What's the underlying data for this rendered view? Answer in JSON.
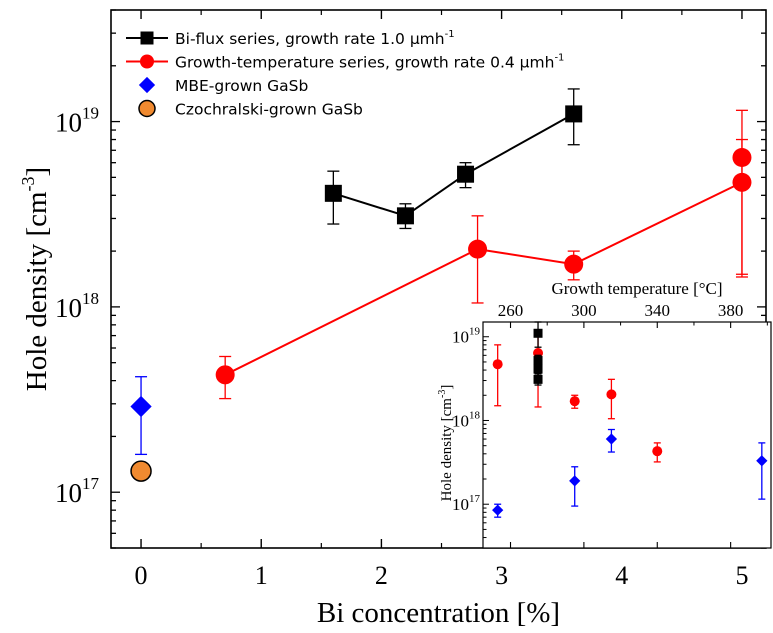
{
  "chart_data": [
    {
      "id": "main",
      "type": "scatter",
      "xlabel": "Bi concentration [%]",
      "ylabel_base": "Hole density [cm",
      "ylabel_exp": "-3",
      "ylabel_close": "]",
      "xlim": [
        -0.25,
        5.2
      ],
      "ylim": [
        5e+16,
        4e+19
      ],
      "yscale": "log",
      "xticks": [
        0,
        1,
        2,
        3,
        4,
        5
      ],
      "yticks": [
        {
          "value": 1e+17,
          "base": "10",
          "exp": "17"
        },
        {
          "value": 1e+18,
          "base": "10",
          "exp": "18"
        },
        {
          "value": 1e+19,
          "base": "10",
          "exp": "19"
        }
      ],
      "legend": {
        "placement": "top-left",
        "entries": [
          {
            "series": "bi",
            "label": "Bi-flux series, growth rate 1.0 μmh",
            "sup": "-1"
          },
          {
            "series": "gt",
            "label": "Growth-temperature series, growth rate 0.4 μmh",
            "sup": "-1"
          },
          {
            "series": "mbe",
            "label": "MBE-grown GaSb",
            "sup": ""
          },
          {
            "series": "cz",
            "label": "Czochralski-grown GaSb",
            "sup": ""
          }
        ]
      },
      "series": [
        {
          "key": "bi",
          "marker": "square",
          "color": "#000000",
          "line": true,
          "points": [
            {
              "x": 1.6,
              "y": 4.1e+18,
              "lo": 2.8e+18,
              "hi": 5.4e+18
            },
            {
              "x": 2.2,
              "y": 3.1e+18,
              "lo": 2.65e+18,
              "hi": 3.6e+18
            },
            {
              "x": 2.7,
              "y": 5.2e+18,
              "lo": 4.4e+18,
              "hi": 6e+18
            },
            {
              "x": 3.6,
              "y": 1.1e+19,
              "lo": 7.5e+18,
              "hi": 1.5e+19
            }
          ]
        },
        {
          "key": "gt",
          "marker": "circle",
          "color": "#ff0000",
          "line": true,
          "points": [
            {
              "x": 0.7,
              "y": 4.3e+17,
              "lo": 3.2e+17,
              "hi": 5.4e+17
            },
            {
              "x": 2.8,
              "y": 2.05e+18,
              "lo": 1.05e+18,
              "hi": 3.1e+18
            },
            {
              "x": 3.6,
              "y": 1.7e+18,
              "lo": 1.4e+18,
              "hi": 2e+18
            },
            {
              "x": 5.0,
              "y": 4.7e+18,
              "lo": 1.5e+18,
              "hi": 8e+18
            },
            {
              "x": 5.0,
              "y": 6.4e+18,
              "lo": 1.45e+18,
              "hi": 1.15e+19,
              "noline": true
            }
          ]
        },
        {
          "key": "mbe",
          "marker": "diamond",
          "color": "#0000ff",
          "line": false,
          "points": [
            {
              "x": 0.0,
              "y": 2.9e+17,
              "lo": 1.6e+17,
              "hi": 4.2e+17
            }
          ]
        },
        {
          "key": "cz",
          "marker": "circle",
          "color": "#f08a30",
          "stroke": "#000000",
          "line": false,
          "points": [
            {
              "x": 0.0,
              "y": 1.3e+17
            }
          ]
        }
      ]
    },
    {
      "id": "inset",
      "type": "scatter",
      "xlabel": "Growth temperature [°C]",
      "xlabel_position": "top",
      "ylabel_base": "Hole density [cm",
      "ylabel_exp": "-3",
      "ylabel_close": "]",
      "xlim": [
        245,
        402
      ],
      "ylim": [
        3e+16,
        1.5e+19
      ],
      "yscale": "log",
      "xticks": [
        260,
        300,
        340,
        380
      ],
      "yticks": [
        {
          "value": 1e+17,
          "base": "10",
          "exp": "17"
        },
        {
          "value": 1e+18,
          "base": "10",
          "exp": "18"
        },
        {
          "value": 1e+19,
          "base": "10",
          "exp": "19"
        }
      ],
      "series": [
        {
          "key": "gt",
          "marker": "circle",
          "color": "#ff0000",
          "points": [
            {
              "x": 253,
              "y": 4.7e+18,
              "lo": 1.5e+18,
              "hi": 8e+18
            },
            {
              "x": 275,
              "y": 6.4e+18,
              "lo": 1.45e+18,
              "hi": 1.15e+19
            },
            {
              "x": 295,
              "y": 1.7e+18,
              "lo": 1.4e+18,
              "hi": 2e+18
            },
            {
              "x": 315,
              "y": 2.05e+18,
              "lo": 1.05e+18,
              "hi": 3.1e+18
            },
            {
              "x": 340,
              "y": 4.3e+17,
              "lo": 3.2e+17,
              "hi": 5.4e+17
            }
          ]
        },
        {
          "key": "bi",
          "marker": "square",
          "color": "#000000",
          "points": [
            {
              "x": 275,
              "y": 1.1e+19,
              "lo": 7.5e+18,
              "hi": 1.5e+19
            },
            {
              "x": 275,
              "y": 5.2e+18,
              "lo": 4.4e+18,
              "hi": 6e+18
            },
            {
              "x": 275,
              "y": 4.1e+18,
              "lo": 2.8e+18,
              "hi": 5.4e+18
            },
            {
              "x": 275,
              "y": 3.1e+18,
              "lo": 2.65e+18,
              "hi": 3.6e+18
            }
          ]
        },
        {
          "key": "mbe",
          "marker": "diamond",
          "color": "#0000ff",
          "points": [
            {
              "x": 253,
              "y": 8.5e+16,
              "lo": 7e+16,
              "hi": 1e+17
            },
            {
              "x": 295,
              "y": 1.9e+17,
              "lo": 9.5e+16,
              "hi": 2.8e+17
            },
            {
              "x": 315,
              "y": 6e+17,
              "lo": 4.2e+17,
              "hi": 7.8e+17
            },
            {
              "x": 397,
              "y": 3.3e+17,
              "lo": 1.15e+17,
              "hi": 5.4e+17
            }
          ]
        }
      ]
    }
  ]
}
